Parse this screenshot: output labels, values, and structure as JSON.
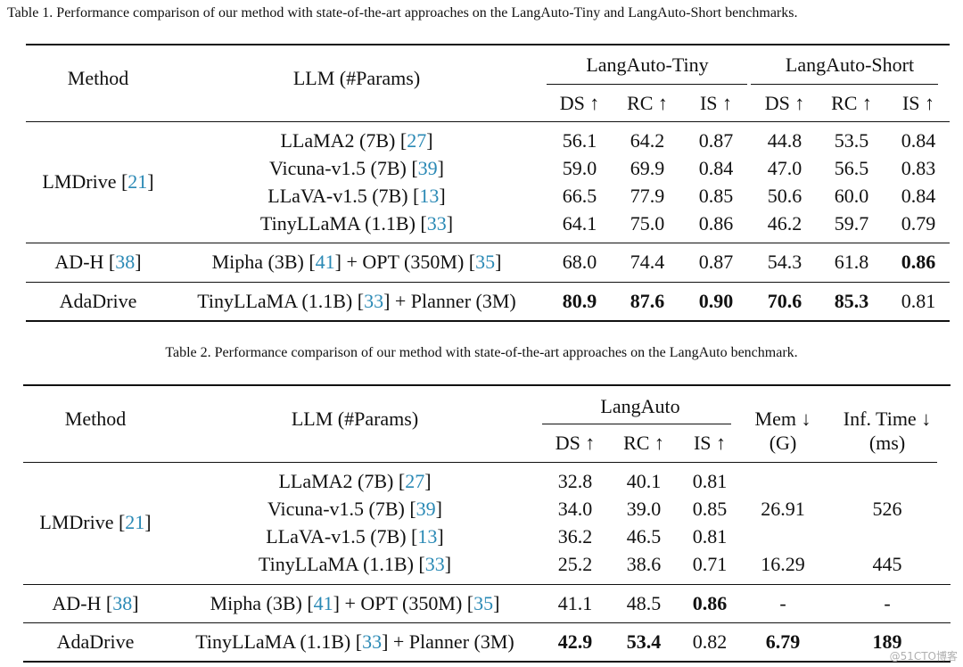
{
  "table1": {
    "caption": "Table 1. Performance comparison of our method with state-of-the-art approaches on the LangAuto-Tiny and LangAuto-Short benchmarks.",
    "header": {
      "method": "Method",
      "llm": "LLM (#Params)",
      "group_a": "LangAuto-Tiny",
      "group_b": "LangAuto-Short",
      "ds": "DS ↑",
      "rc": "RC ↑",
      "is": "IS ↑"
    },
    "rows": {
      "lmdrive_method": "LMDrive [",
      "lmdrive_ref": "21",
      "r1": {
        "llm": "LLaMA2 (7B) [",
        "ref": "27",
        "v": [
          "56.1",
          "64.2",
          "0.87",
          "44.8",
          "53.5",
          "0.84"
        ]
      },
      "r2": {
        "llm": "Vicuna-v1.5 (7B) [",
        "ref": "39",
        "v": [
          "59.0",
          "69.9",
          "0.84",
          "47.0",
          "56.5",
          "0.83"
        ]
      },
      "r3": {
        "llm": "LLaVA-v1.5 (7B) [",
        "ref": "13",
        "v": [
          "66.5",
          "77.9",
          "0.85",
          "50.6",
          "60.0",
          "0.84"
        ]
      },
      "r4": {
        "llm": "TinyLLaMA (1.1B) [",
        "ref": "33",
        "v": [
          "64.1",
          "75.0",
          "0.86",
          "46.2",
          "59.7",
          "0.79"
        ]
      },
      "adh": {
        "method": "AD-H [",
        "method_ref": "38",
        "llm_a": "Mipha (3B) [",
        "ref_a": "41",
        "llm_b": "] + OPT (350M) [",
        "ref_b": "35",
        "v": [
          "68.0",
          "74.4",
          "0.87",
          "54.3",
          "61.8",
          "0.86"
        ]
      },
      "ada": {
        "method": "AdaDrive",
        "llm_a": "TinyLLaMA (1.1B)  [",
        "ref_a": "33",
        "llm_b": "] + Planner (3M)",
        "v": [
          "80.9",
          "87.6",
          "0.90",
          "70.6",
          "85.3",
          "0.81"
        ]
      }
    }
  },
  "table2": {
    "caption": "Table 2. Performance comparison of our method with state-of-the-art approaches on the LangAuto benchmark.",
    "header": {
      "method": "Method",
      "llm": "LLM (#Params)",
      "group": "LangAuto",
      "ds": "DS ↑",
      "rc": "RC ↑",
      "is": "IS ↑",
      "mem": "Mem ↓",
      "mem_unit": "(G)",
      "inf": "Inf. Time ↓",
      "inf_unit": "(ms)"
    },
    "rows": {
      "lmdrive_method": "LMDrive [",
      "lmdrive_ref": "21",
      "r1": {
        "llm": "LLaMA2 (7B)  [",
        "ref": "27",
        "v": [
          "32.8",
          "40.1",
          "0.81"
        ]
      },
      "r2": {
        "llm": "Vicuna-v1.5 (7B)  [",
        "ref": "39",
        "v": [
          "34.0",
          "39.0",
          "0.85"
        ]
      },
      "r3": {
        "llm": "LLaVA-v1.5 (7B)  [",
        "ref": "13",
        "v": [
          "36.2",
          "46.5",
          "0.81"
        ]
      },
      "r4": {
        "llm": "TinyLLaMA (1.1B)  [",
        "ref": "33",
        "v": [
          "25.2",
          "38.6",
          "0.71"
        ]
      },
      "mem_7b": "26.91",
      "inf_7b": "526",
      "mem_tiny": "16.29",
      "inf_tiny": "445",
      "adh": {
        "method": "AD-H [",
        "method_ref": "38",
        "llm_a": "Mipha (3B) [",
        "ref_a": "41",
        "llm_b": "] + OPT (350M) [",
        "ref_b": "35",
        "v": [
          "41.1",
          "48.5",
          "0.86"
        ],
        "mem": "-",
        "inf": "-"
      },
      "ada": {
        "method": "AdaDrive",
        "llm_a": "TinyLLaMA (1.1B)  [",
        "ref_a": "33",
        "llm_b": "] + Planner (3M)",
        "v": [
          "42.9",
          "53.4",
          "0.82"
        ],
        "mem": "6.79",
        "inf": "189"
      }
    }
  },
  "watermark": "@51CTO博客"
}
